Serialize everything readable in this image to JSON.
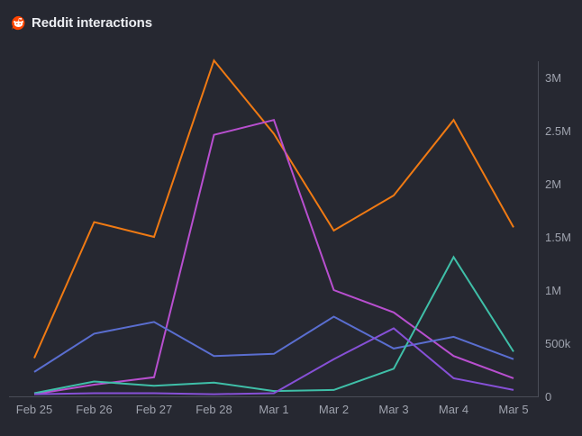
{
  "header": {
    "title": "Reddit interactions",
    "icon": "reddit-icon"
  },
  "colors": {
    "background": "#262831",
    "axis": "#4a4d57",
    "tick_text": "#9ea2ad"
  },
  "chart_data": {
    "type": "line",
    "title": "Reddit interactions",
    "xlabel": "",
    "ylabel": "",
    "categories": [
      "Feb 25",
      "Feb 26",
      "Feb 27",
      "Feb 28",
      "Mar 1",
      "Mar 2",
      "Mar 3",
      "Mar 4",
      "Mar 5"
    ],
    "ylim": [
      0,
      3150000
    ],
    "yticks": [
      0,
      500000,
      1000000,
      1500000,
      2000000,
      2500000,
      3000000
    ],
    "ytick_labels": [
      "0",
      "500k",
      "1M",
      "1.5M",
      "2M",
      "2.5M",
      "3M"
    ],
    "y_axis_position": "right",
    "grid": false,
    "legend": "none",
    "series": [
      {
        "name": "series-orange",
        "color": "#f07a13",
        "values": [
          360000,
          1640000,
          1500000,
          3160000,
          2470000,
          1560000,
          1890000,
          2600000,
          1590000
        ]
      },
      {
        "name": "series-magenta",
        "color": "#b84fcf",
        "values": [
          20000,
          110000,
          180000,
          2460000,
          2600000,
          1000000,
          790000,
          380000,
          170000
        ]
      },
      {
        "name": "series-blue",
        "color": "#5a6ed0",
        "values": [
          230000,
          590000,
          700000,
          380000,
          400000,
          750000,
          450000,
          560000,
          350000
        ]
      },
      {
        "name": "series-teal",
        "color": "#3fbfa8",
        "values": [
          30000,
          140000,
          100000,
          130000,
          50000,
          60000,
          260000,
          1310000,
          420000
        ]
      },
      {
        "name": "series-purple",
        "color": "#8650d6",
        "values": [
          20000,
          30000,
          30000,
          20000,
          30000,
          350000,
          640000,
          170000,
          60000
        ]
      }
    ]
  }
}
